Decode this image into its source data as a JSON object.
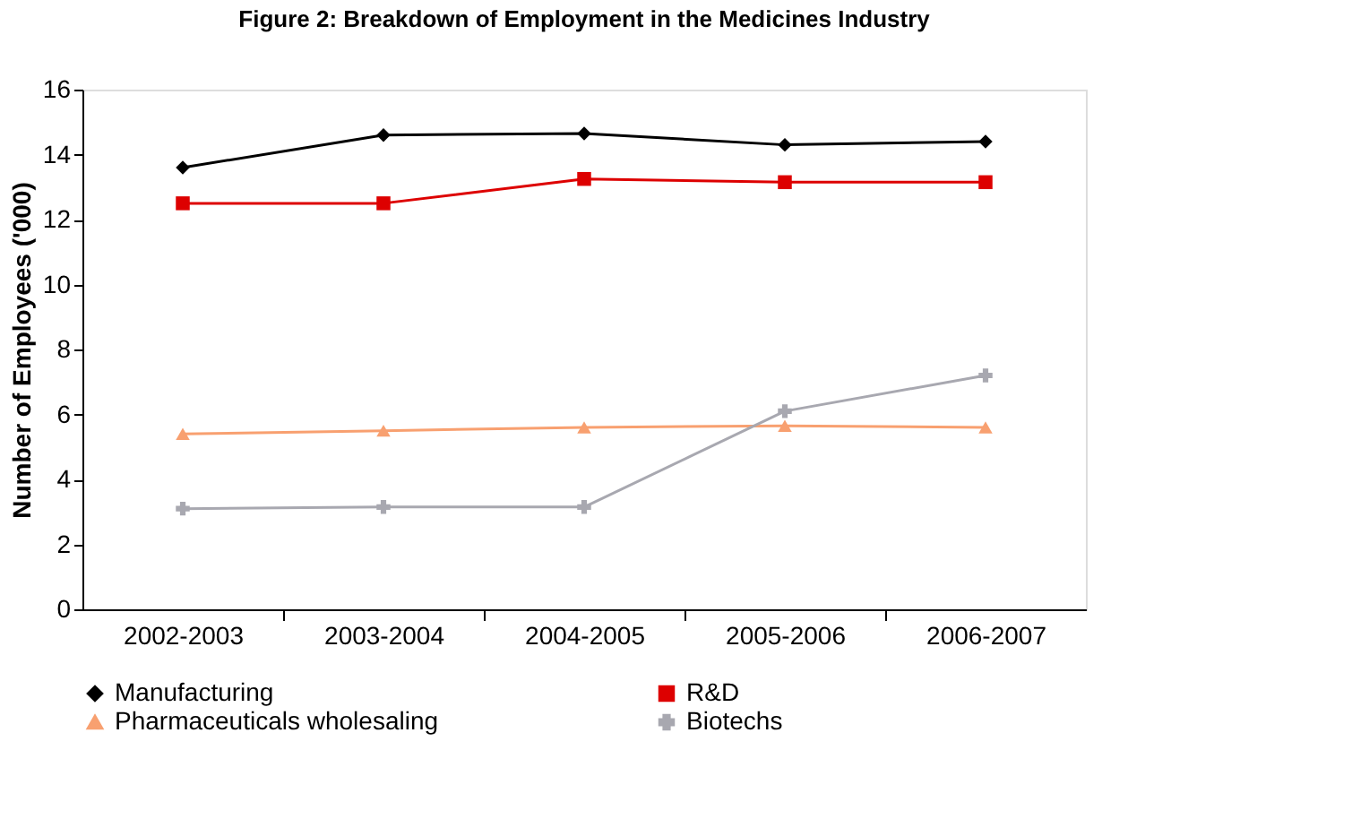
{
  "chart_data": {
    "type": "line",
    "title": "Figure 2: Breakdown of Employment in the Medicines Industry",
    "ylabel": "Number of Employees ('000)",
    "categories": [
      "2002-2003",
      "2003-2004",
      "2004-2005",
      "2005-2006",
      "2006-2007"
    ],
    "series": [
      {
        "name": "Manufacturing",
        "color": "#000000",
        "marker": "diamond",
        "values": [
          13.6,
          14.6,
          14.65,
          14.3,
          14.4
        ]
      },
      {
        "name": "R&D",
        "color": "#dd0000",
        "marker": "square",
        "values": [
          12.5,
          12.5,
          13.25,
          13.15,
          13.15
        ]
      },
      {
        "name": "Pharmaceuticals wholesaling",
        "color": "#f8a070",
        "marker": "triangle",
        "values": [
          5.4,
          5.5,
          5.6,
          5.65,
          5.6
        ]
      },
      {
        "name": "Biotechs",
        "color": "#a8a8b0",
        "marker": "cross",
        "values": [
          3.1,
          3.15,
          3.15,
          6.1,
          7.2
        ]
      }
    ],
    "ylim": [
      0,
      16
    ],
    "yticks": [
      0,
      2,
      4,
      6,
      8,
      10,
      12,
      14,
      16
    ],
    "grid": false,
    "legend": "bottom"
  }
}
